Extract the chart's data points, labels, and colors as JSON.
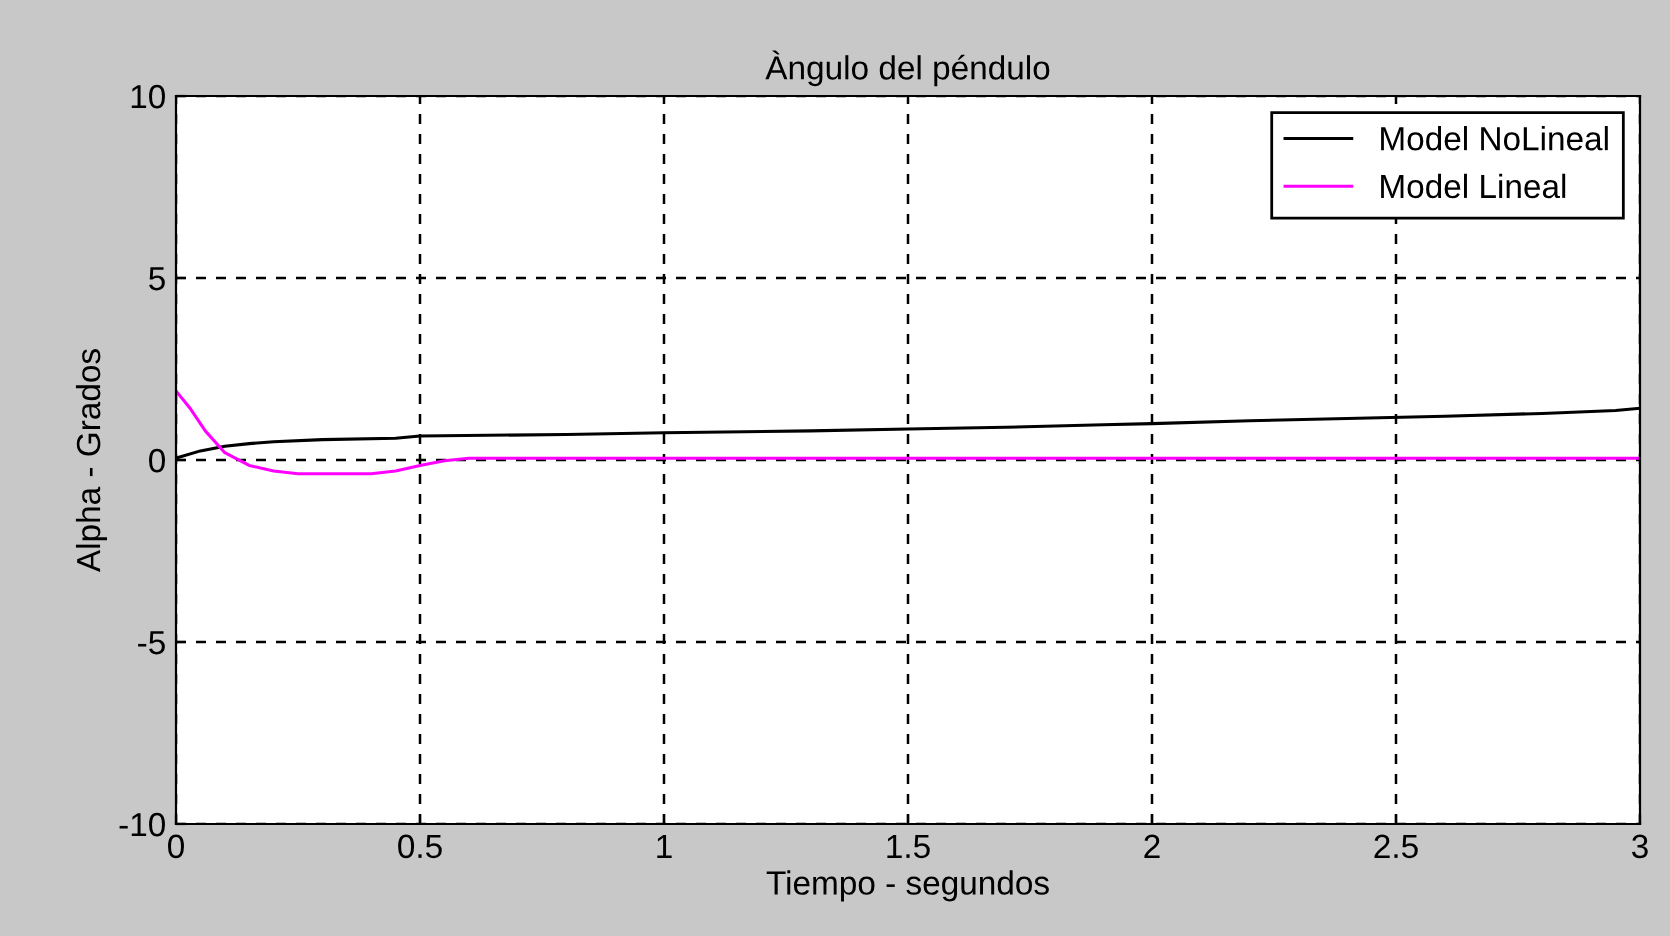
{
  "chart_data": {
    "type": "line",
    "title": "Àngulo del péndulo",
    "xlabel": "Tiempo - segundos",
    "ylabel": "Alpha - Grados",
    "series": [
      {
        "name": "Model NoLineal",
        "color": "#000000",
        "x": [
          0,
          0.05,
          0.1,
          0.15,
          0.2,
          0.3,
          0.45,
          0.5,
          0.8,
          1.0,
          1.3,
          1.5,
          1.7,
          1.9,
          2.0,
          2.2,
          2.4,
          2.6,
          2.8,
          2.95,
          3.0
        ],
        "values": [
          0.05,
          0.25,
          0.38,
          0.45,
          0.5,
          0.56,
          0.6,
          0.66,
          0.7,
          0.75,
          0.8,
          0.85,
          0.9,
          0.97,
          1.0,
          1.08,
          1.14,
          1.2,
          1.28,
          1.36,
          1.42
        ]
      },
      {
        "name": "Model Lineal",
        "color": "#ff00ff",
        "x": [
          0,
          0.03,
          0.06,
          0.1,
          0.15,
          0.2,
          0.25,
          0.3,
          0.4,
          0.45,
          0.5,
          0.55,
          0.6,
          1.0,
          2.0,
          3.0
        ],
        "values": [
          1.9,
          1.4,
          0.8,
          0.2,
          -0.15,
          -0.3,
          -0.38,
          -0.38,
          -0.38,
          -0.3,
          -0.15,
          -0.02,
          0.05,
          0.05,
          0.05,
          0.05
        ]
      }
    ],
    "xlim": [
      0,
      3
    ],
    "ylim": [
      -10,
      10
    ],
    "xticks": [
      0,
      0.5,
      1,
      1.5,
      2,
      2.5,
      3
    ],
    "yticks": [
      -10,
      -5,
      0,
      5,
      10
    ],
    "grid": true,
    "legend": "top right",
    "marker": "none",
    "line_style": "solid"
  }
}
